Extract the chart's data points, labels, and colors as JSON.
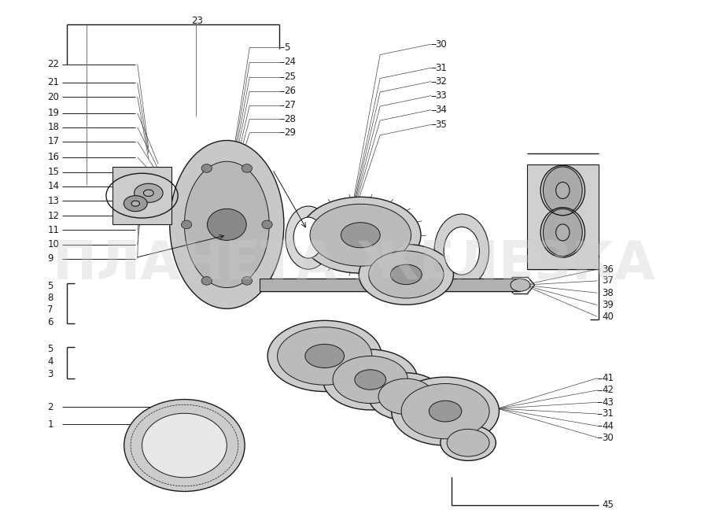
{
  "background_color": "#ffffff",
  "watermark_text": "ПЛАНЕТА ЖЕЛЕЗКА",
  "watermark_color": "#cccccc",
  "watermark_alpha": 0.35,
  "watermark_fontsize": 48,
  "left_data": [
    [
      "22",
      0.88
    ],
    [
      "21",
      0.845
    ],
    [
      "20",
      0.818
    ],
    [
      "19",
      0.787
    ],
    [
      "18",
      0.76
    ],
    [
      "17",
      0.733
    ],
    [
      "16",
      0.703
    ],
    [
      "15",
      0.675
    ],
    [
      "14",
      0.648
    ],
    [
      "13",
      0.62
    ],
    [
      "12",
      0.592
    ],
    [
      "11",
      0.565
    ],
    [
      "10",
      0.537
    ],
    [
      "9",
      0.51
    ]
  ],
  "group1_labels": [
    [
      "5",
      0.458
    ],
    [
      "8",
      0.436
    ],
    [
      "7",
      0.413
    ],
    [
      "6",
      0.39
    ]
  ],
  "group2_labels": [
    [
      "5",
      0.338
    ],
    [
      "4",
      0.315
    ],
    [
      "3",
      0.29
    ]
  ],
  "top_right_labels": [
    [
      "5",
      0.912
    ],
    [
      "24",
      0.884
    ],
    [
      "25",
      0.856
    ],
    [
      "26",
      0.829
    ],
    [
      "27",
      0.802
    ],
    [
      "28",
      0.776
    ],
    [
      "29",
      0.75
    ]
  ],
  "right_labels_top": [
    [
      "30",
      0.918
    ],
    [
      "31",
      0.873
    ],
    [
      "32",
      0.847
    ],
    [
      "33",
      0.82
    ],
    [
      "34",
      0.793
    ],
    [
      "35",
      0.765
    ]
  ],
  "right_labels_mid": [
    [
      "36",
      0.49
    ],
    [
      "37",
      0.468
    ],
    [
      "38",
      0.445
    ],
    [
      "39",
      0.422
    ],
    [
      "40",
      0.4
    ]
  ],
  "right_labels_bot": [
    [
      "41",
      0.283
    ],
    [
      "42",
      0.26
    ],
    [
      "43",
      0.237
    ],
    [
      "31",
      0.215
    ],
    [
      "44",
      0.192
    ],
    [
      "30",
      0.17
    ]
  ]
}
